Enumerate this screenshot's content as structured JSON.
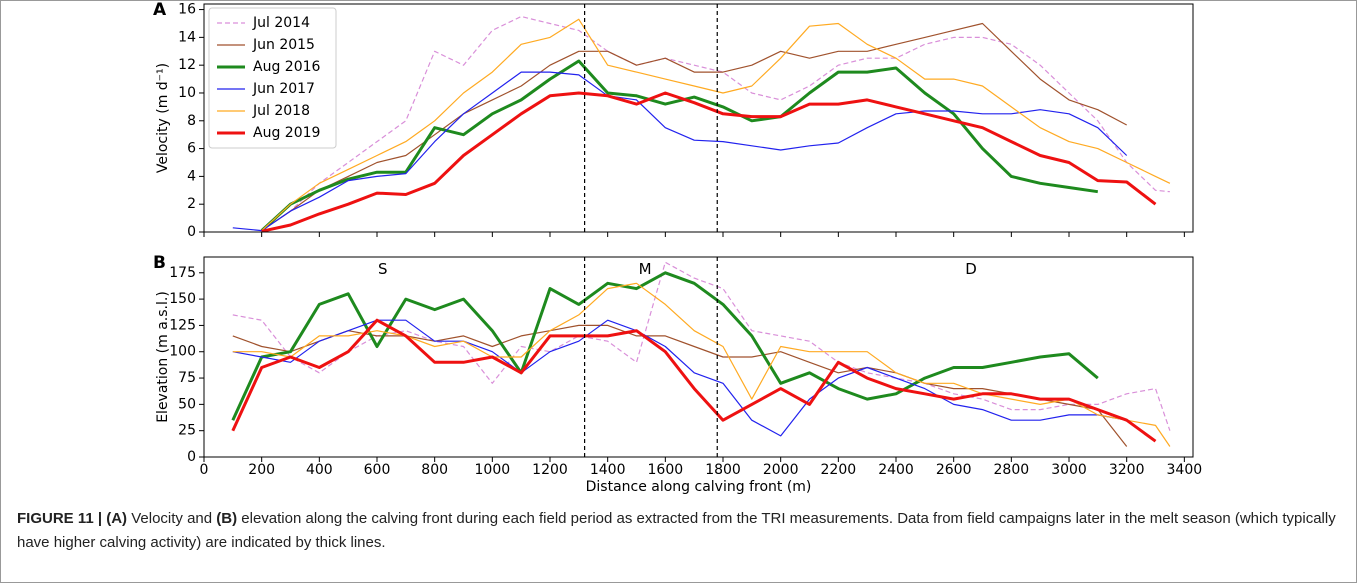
{
  "chart_data": [
    {
      "type": "line",
      "panel": "A",
      "ylabel": "Velocity (m d⁻¹)",
      "xlim": [
        0,
        3430
      ],
      "ylim": [
        0,
        16.4
      ],
      "yticks": [
        0,
        2,
        4,
        6,
        8,
        10,
        12,
        14,
        16
      ],
      "legend": "upper left",
      "vlines": [
        1320,
        1780
      ],
      "x": [
        100,
        200,
        300,
        400,
        500,
        600,
        700,
        800,
        900,
        1000,
        1100,
        1200,
        1300,
        1400,
        1500,
        1600,
        1700,
        1800,
        1900,
        2000,
        2100,
        2200,
        2300,
        2400,
        2500,
        2600,
        2700,
        2800,
        2900,
        3000,
        3100,
        3200,
        3300,
        3350
      ],
      "series": [
        {
          "name": "Jul 2014",
          "color": "#d98fd9",
          "linewidth": 1.2,
          "linestyle": "dashed",
          "values": [
            null,
            0.1,
            1.5,
            3.5,
            5,
            6.5,
            8,
            13,
            12,
            14.5,
            15.5,
            15,
            14.5,
            13,
            12,
            12.5,
            12,
            11.5,
            10,
            9.5,
            10.5,
            12,
            12.5,
            12.5,
            13.5,
            14,
            14,
            13.5,
            12,
            10,
            8,
            5,
            3,
            2.9
          ]
        },
        {
          "name": "Jun 2015",
          "color": "#a0522d",
          "linewidth": 1.2,
          "values": [
            null,
            0.1,
            1.5,
            3,
            4,
            5,
            5.5,
            7,
            8.5,
            9.5,
            10.5,
            12,
            13,
            13,
            12,
            12.5,
            11.5,
            11.5,
            12,
            13,
            12.5,
            13,
            13,
            13.5,
            14,
            14.5,
            15,
            13,
            11,
            9.5,
            8.8,
            7.7,
            null,
            null
          ]
        },
        {
          "name": "Aug 2016",
          "color": "#1e8a1e",
          "linewidth": 3,
          "values": [
            null,
            0.1,
            2,
            3,
            3.8,
            4.3,
            4.3,
            7.5,
            7,
            8.5,
            9.5,
            11,
            12.3,
            10,
            9.8,
            9.2,
            9.7,
            9,
            8,
            8.3,
            10,
            11.5,
            11.5,
            11.8,
            10,
            8.5,
            6,
            4,
            3.5,
            3.2,
            2.9,
            null,
            null,
            null
          ]
        },
        {
          "name": "Jun 2017",
          "color": "#2222ee",
          "linewidth": 1.2,
          "values": [
            0.3,
            0.1,
            1.5,
            2.5,
            3.7,
            4,
            4.2,
            6.5,
            8.5,
            10,
            11.5,
            11.5,
            11.3,
            9.8,
            9.5,
            7.5,
            6.6,
            6.5,
            6.2,
            5.9,
            6.2,
            6.4,
            7.5,
            8.5,
            8.7,
            8.7,
            8.5,
            8.5,
            8.8,
            8.5,
            7.5,
            5.5,
            null,
            null
          ]
        },
        {
          "name": "Jul 2018",
          "color": "#ffaa22",
          "linewidth": 1.2,
          "values": [
            null,
            0.1,
            2,
            3.5,
            4.5,
            5.5,
            6.5,
            8,
            10,
            11.5,
            13.5,
            14,
            15.3,
            12,
            11.5,
            11,
            10.5,
            10,
            10.5,
            12.5,
            14.8,
            15,
            13.5,
            12.5,
            11,
            11,
            10.5,
            9,
            7.5,
            6.5,
            6,
            5,
            4,
            3.5
          ]
        },
        {
          "name": "Aug 2019",
          "color": "#ee1111",
          "linewidth": 3,
          "values": [
            null,
            0.05,
            0.5,
            1.3,
            2,
            2.8,
            2.7,
            3.5,
            5.5,
            7,
            8.5,
            9.8,
            10,
            9.8,
            9.2,
            10,
            9.3,
            8.5,
            8.3,
            8.3,
            9.2,
            9.2,
            9.5,
            9,
            8.5,
            8,
            7.5,
            6.5,
            5.5,
            5,
            3.7,
            3.6,
            2,
            null
          ]
        }
      ]
    },
    {
      "type": "line",
      "panel": "B",
      "ylabel": "Elevation (m a.s.l.)",
      "xlabel": "Distance along calving front (m)",
      "xlim": [
        0,
        3430
      ],
      "ylim": [
        0,
        190
      ],
      "xticks": [
        0,
        200,
        400,
        600,
        800,
        1000,
        1200,
        1400,
        1600,
        1800,
        2000,
        2200,
        2400,
        2600,
        2800,
        3000,
        3200,
        3400
      ],
      "yticks": [
        0,
        25,
        50,
        75,
        100,
        125,
        150,
        175
      ],
      "vlines": [
        1320,
        1780
      ],
      "annotations": [
        {
          "text": "S",
          "x": 620,
          "y": 178
        },
        {
          "text": "M",
          "x": 1530,
          "y": 178
        },
        {
          "text": "D",
          "x": 2660,
          "y": 178
        }
      ],
      "x": [
        100,
        200,
        300,
        400,
        500,
        600,
        700,
        800,
        900,
        1000,
        1100,
        1200,
        1300,
        1400,
        1500,
        1600,
        1700,
        1800,
        1900,
        2000,
        2100,
        2200,
        2300,
        2400,
        2500,
        2600,
        2700,
        2800,
        2900,
        3000,
        3100,
        3200,
        3300,
        3350
      ],
      "series": [
        {
          "color": "#d98fd9",
          "linewidth": 1.2,
          "linestyle": "dashed",
          "values": [
            135,
            130,
            95,
            80,
            100,
            115,
            120,
            110,
            105,
            70,
            105,
            100,
            115,
            110,
            90,
            185,
            170,
            160,
            120,
            115,
            110,
            90,
            80,
            75,
            70,
            60,
            55,
            45,
            45,
            50,
            50,
            60,
            65,
            25
          ]
        },
        {
          "color": "#a0522d",
          "linewidth": 1.2,
          "values": [
            115,
            105,
            100,
            110,
            120,
            115,
            115,
            110,
            115,
            105,
            115,
            120,
            125,
            125,
            115,
            115,
            105,
            95,
            95,
            100,
            90,
            80,
            85,
            80,
            70,
            65,
            65,
            60,
            55,
            50,
            45,
            10,
            null,
            null
          ]
        },
        {
          "color": "#1e8a1e",
          "linewidth": 3,
          "values": [
            35,
            95,
            100,
            145,
            155,
            105,
            150,
            140,
            150,
            120,
            80,
            160,
            145,
            165,
            160,
            175,
            165,
            145,
            115,
            70,
            80,
            65,
            55,
            60,
            75,
            85,
            85,
            90,
            95,
            98,
            75,
            null,
            null,
            null
          ]
        },
        {
          "color": "#2222ee",
          "linewidth": 1.2,
          "values": [
            100,
            95,
            90,
            110,
            120,
            130,
            130,
            110,
            110,
            100,
            80,
            100,
            110,
            130,
            120,
            105,
            80,
            70,
            35,
            20,
            55,
            75,
            85,
            75,
            65,
            50,
            45,
            35,
            35,
            40,
            40,
            35,
            null,
            null
          ]
        },
        {
          "color": "#ffaa22",
          "linewidth": 1.2,
          "values": [
            100,
            100,
            95,
            115,
            115,
            120,
            115,
            105,
            110,
            95,
            95,
            120,
            135,
            160,
            165,
            145,
            120,
            105,
            55,
            105,
            100,
            100,
            100,
            80,
            70,
            70,
            60,
            55,
            50,
            55,
            40,
            35,
            30,
            10
          ]
        },
        {
          "color": "#ee1111",
          "linewidth": 3,
          "values": [
            25,
            85,
            95,
            85,
            100,
            130,
            115,
            90,
            90,
            95,
            80,
            115,
            115,
            115,
            120,
            100,
            65,
            35,
            50,
            65,
            50,
            90,
            75,
            65,
            60,
            55,
            60,
            60,
            55,
            55,
            45,
            35,
            15,
            null
          ]
        }
      ]
    }
  ],
  "caption": [
    {
      "text": "FIGURE 11 | (A)",
      "bold": true
    },
    {
      "text": " Velocity and "
    },
    {
      "text": "(B)",
      "bold": true
    },
    {
      "text": " elevation along the calving front during each field period as extracted from the TRI measurements. Data from field campaigns later in the melt season (which typically have higher calving activity) are indicated by thick lines."
    }
  ]
}
